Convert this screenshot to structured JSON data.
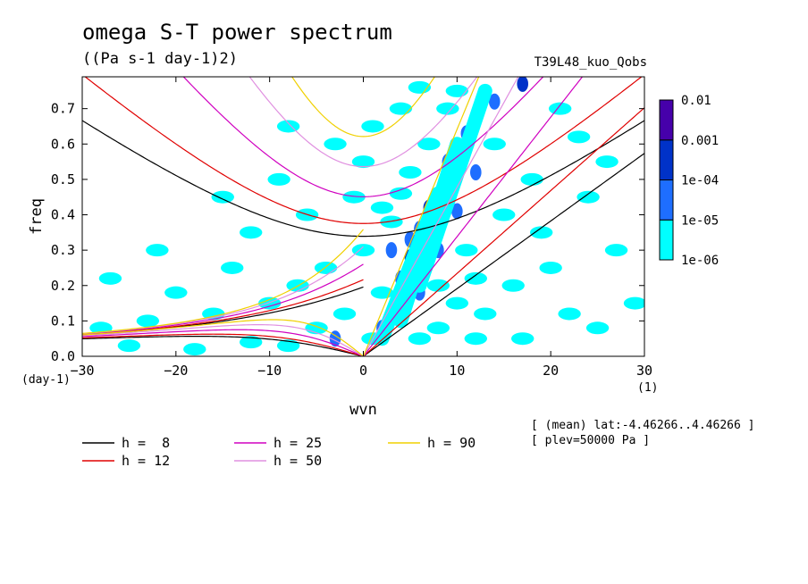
{
  "title": "omega S-T power spectrum",
  "subtitle": "((Pa s-1 day-1)2)",
  "run_name": "T39L48_kuo_Qobs",
  "meta": {
    "line1": "[ (mean) lat:-4.46266..4.46266 ]",
    "line2": "[ plev=50000 Pa ]"
  },
  "chart_data": {
    "type": "heatmap",
    "title": "omega S-T power spectrum",
    "subtitle": "((Pa s-1 day-1)2)",
    "xlabel": "wvn",
    "ylabel": "freq",
    "x_unit": "(1)",
    "y_unit": "(day-1)",
    "xlim": [
      -30,
      30
    ],
    "ylim": [
      0,
      0.79
    ],
    "x_ticks": [
      -30,
      -20,
      -10,
      0,
      10,
      20,
      30
    ],
    "y_ticks": [
      0.0,
      0.1,
      0.2,
      0.3,
      0.4,
      0.5,
      0.6,
      0.7
    ],
    "x_tick_labels": [
      "-30",
      "-20",
      "-10",
      "0",
      "10",
      "20",
      "30"
    ],
    "y_tick_labels": [
      "0.0",
      "0.1",
      "0.2",
      "0.3",
      "0.4",
      "0.5",
      "0.6",
      "0.7"
    ],
    "colorbar": {
      "levels": [
        "1e-06",
        "1e-05",
        "1e-04",
        "0.001",
        "0.01"
      ],
      "colors": [
        "#00ffff",
        "#1e6eff",
        "#0032c8",
        "#4600aa"
      ]
    },
    "contour_cells": [
      {
        "k": 5,
        "f": 0.28,
        "level": 3
      },
      {
        "k": 6,
        "f": 0.24,
        "level": 3
      },
      {
        "k": 4,
        "f": 0.14,
        "level": 3
      },
      {
        "k": 7,
        "f": 0.42,
        "level": 3
      },
      {
        "k": 17,
        "f": 0.77,
        "level": 3
      },
      {
        "k": 3,
        "f": 0.12,
        "level": 2
      },
      {
        "k": 4,
        "f": 0.22,
        "level": 2
      },
      {
        "k": 5,
        "f": 0.33,
        "level": 2
      },
      {
        "k": 6,
        "f": 0.36,
        "level": 2
      },
      {
        "k": 8,
        "f": 0.45,
        "level": 2
      },
      {
        "k": 9,
        "f": 0.55,
        "level": 2
      },
      {
        "k": 11,
        "f": 0.63,
        "level": 2
      },
      {
        "k": 14,
        "f": 0.72,
        "level": 2
      },
      {
        "k": 2,
        "f": 0.08,
        "level": 2
      },
      {
        "k": 6,
        "f": 0.18,
        "level": 2
      },
      {
        "k": 10,
        "f": 0.41,
        "level": 2
      },
      {
        "k": -3,
        "f": 0.05,
        "level": 2
      },
      {
        "k": 8,
        "f": 0.3,
        "level": 2
      },
      {
        "k": 12,
        "f": 0.52,
        "level": 2
      },
      {
        "k": 3,
        "f": 0.3,
        "level": 2
      },
      {
        "k": 1,
        "f": 0.05,
        "level": 1
      },
      {
        "k": 2,
        "f": 0.18,
        "level": 1
      },
      {
        "k": 3,
        "f": 0.38,
        "level": 1
      },
      {
        "k": 4,
        "f": 0.46,
        "level": 1
      },
      {
        "k": 7,
        "f": 0.6,
        "level": 1
      },
      {
        "k": 9,
        "f": 0.7,
        "level": 1
      },
      {
        "k": 10,
        "f": 0.75,
        "level": 1
      },
      {
        "k": 11,
        "f": 0.3,
        "level": 1
      },
      {
        "k": 12,
        "f": 0.22,
        "level": 1
      },
      {
        "k": 13,
        "f": 0.12,
        "level": 1
      },
      {
        "k": 8,
        "f": 0.08,
        "level": 1
      },
      {
        "k": 6,
        "f": 0.05,
        "level": 1
      },
      {
        "k": -2,
        "f": 0.12,
        "level": 1
      },
      {
        "k": -5,
        "f": 0.08,
        "level": 1
      },
      {
        "k": -8,
        "f": 0.03,
        "level": 1
      },
      {
        "k": -12,
        "f": 0.04,
        "level": 1
      },
      {
        "k": -18,
        "f": 0.02,
        "level": 1
      },
      {
        "k": -25,
        "f": 0.03,
        "level": 1
      },
      {
        "k": 15,
        "f": 0.4,
        "level": 1
      },
      {
        "k": 18,
        "f": 0.5,
        "level": 1
      },
      {
        "k": 20,
        "f": 0.25,
        "level": 1
      },
      {
        "k": 22,
        "f": 0.12,
        "level": 1
      },
      {
        "k": 25,
        "f": 0.08,
        "level": 1
      },
      {
        "k": 14,
        "f": 0.6,
        "level": 1
      },
      {
        "k": 16,
        "f": 0.2,
        "level": 1
      },
      {
        "k": 19,
        "f": 0.35,
        "level": 1
      },
      {
        "k": 24,
        "f": 0.45,
        "level": 1
      },
      {
        "k": 27,
        "f": 0.3,
        "level": 1
      },
      {
        "k": 29,
        "f": 0.15,
        "level": 1
      },
      {
        "k": 10,
        "f": 0.15,
        "level": 1
      },
      {
        "k": 0,
        "f": 0.3,
        "level": 1
      },
      {
        "k": 0,
        "f": 0.55,
        "level": 1
      },
      {
        "k": -1,
        "f": 0.45,
        "level": 1
      },
      {
        "k": 1,
        "f": 0.65,
        "level": 1
      },
      {
        "k": -4,
        "f": 0.25,
        "level": 1
      },
      {
        "k": -7,
        "f": 0.2,
        "level": 1
      },
      {
        "k": -10,
        "f": 0.15,
        "level": 1
      },
      {
        "k": -14,
        "f": 0.25,
        "level": 1
      },
      {
        "k": -6,
        "f": 0.4,
        "level": 1
      },
      {
        "k": -9,
        "f": 0.5,
        "level": 1
      },
      {
        "k": -3,
        "f": 0.6,
        "level": 1
      },
      {
        "k": -12,
        "f": 0.35,
        "level": 1
      },
      {
        "k": -16,
        "f": 0.12,
        "level": 1
      },
      {
        "k": -20,
        "f": 0.18,
        "level": 1
      },
      {
        "k": -23,
        "f": 0.1,
        "level": 1
      },
      {
        "k": -27,
        "f": 0.22,
        "level": 1
      },
      {
        "k": -28,
        "f": 0.08,
        "level": 1
      },
      {
        "k": -15,
        "f": 0.45,
        "level": 1
      },
      {
        "k": -22,
        "f": 0.3,
        "level": 1
      },
      {
        "k": 4,
        "f": 0.7,
        "level": 1
      },
      {
        "k": 6,
        "f": 0.76,
        "level": 1
      },
      {
        "k": 23,
        "f": 0.62,
        "level": 1
      },
      {
        "k": 26,
        "f": 0.55,
        "level": 1
      },
      {
        "k": 21,
        "f": 0.7,
        "level": 1
      },
      {
        "k": -8,
        "f": 0.65,
        "level": 1
      },
      {
        "k": 12,
        "f": 0.05,
        "level": 1
      },
      {
        "k": 17,
        "f": 0.05,
        "level": 1
      },
      {
        "k": 2,
        "f": 0.42,
        "level": 1
      },
      {
        "k": 5,
        "f": 0.52,
        "level": 1
      },
      {
        "k": 8,
        "f": 0.2,
        "level": 1
      }
    ],
    "series": [
      {
        "name": "h =  8",
        "h": 8,
        "color": "#000000",
        "linestyle": "solid"
      },
      {
        "name": "h = 12",
        "h": 12,
        "color": "#e00000",
        "linestyle": "solid"
      },
      {
        "name": "h = 25",
        "h": 25,
        "color": "#d000c0",
        "linestyle": "solid"
      },
      {
        "name": "h = 50",
        "h": 50,
        "color": "#e090e0",
        "linestyle": "solid"
      },
      {
        "name": "h = 90",
        "h": 90,
        "color": "#f0d000",
        "linestyle": "solid"
      }
    ],
    "legend_placement": "bottom",
    "grid": false
  }
}
